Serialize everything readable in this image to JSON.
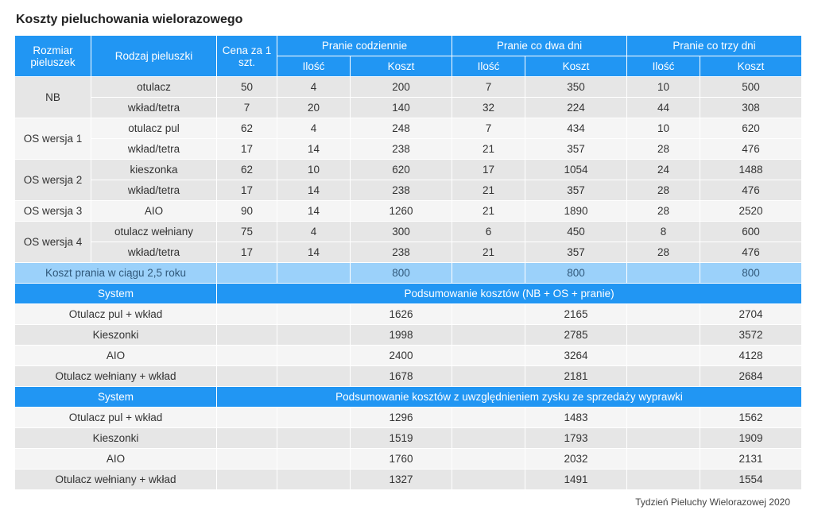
{
  "title": "Koszty pieluchowania wielorazowego",
  "footer": "Tydzień Pieluchy Wielorazowej 2020",
  "header": {
    "size": "Rozmiar pieluszek",
    "type": "Rodzaj pieluszki",
    "price": "Cena za 1 szt.",
    "daily": "Pranie codziennie",
    "two": "Pranie co dwa dni",
    "three": "Pranie co trzy dni",
    "qty": "Ilość",
    "cost": "Koszt"
  },
  "groups": [
    {
      "size": "NB",
      "rows": [
        {
          "type": "otulacz",
          "p": "50",
          "d": [
            "4",
            "200"
          ],
          "t": [
            "7",
            "350"
          ],
          "r": [
            "10",
            "500"
          ]
        },
        {
          "type": "wkład/tetra",
          "p": "7",
          "d": [
            "20",
            "140"
          ],
          "t": [
            "32",
            "224"
          ],
          "r": [
            "44",
            "308"
          ]
        }
      ]
    },
    {
      "size": "OS wersja 1",
      "rows": [
        {
          "type": "otulacz pul",
          "p": "62",
          "d": [
            "4",
            "248"
          ],
          "t": [
            "7",
            "434"
          ],
          "r": [
            "10",
            "620"
          ]
        },
        {
          "type": "wkład/tetra",
          "p": "17",
          "d": [
            "14",
            "238"
          ],
          "t": [
            "21",
            "357"
          ],
          "r": [
            "28",
            "476"
          ]
        }
      ]
    },
    {
      "size": "OS wersja 2",
      "rows": [
        {
          "type": "kieszonka",
          "p": "62",
          "d": [
            "10",
            "620"
          ],
          "t": [
            "17",
            "1054"
          ],
          "r": [
            "24",
            "1488"
          ]
        },
        {
          "type": "wkład/tetra",
          "p": "17",
          "d": [
            "14",
            "238"
          ],
          "t": [
            "21",
            "357"
          ],
          "r": [
            "28",
            "476"
          ]
        }
      ]
    },
    {
      "size": "OS wersja 3",
      "rows": [
        {
          "type": "AIO",
          "p": "90",
          "d": [
            "14",
            "1260"
          ],
          "t": [
            "21",
            "1890"
          ],
          "r": [
            "28",
            "2520"
          ]
        }
      ]
    },
    {
      "size": "OS wersja 4",
      "rows": [
        {
          "type": "otulacz wełniany",
          "p": "75",
          "d": [
            "4",
            "300"
          ],
          "t": [
            "6",
            "450"
          ],
          "r": [
            "8",
            "600"
          ]
        },
        {
          "type": "wkład/tetra",
          "p": "17",
          "d": [
            "14",
            "238"
          ],
          "t": [
            "21",
            "357"
          ],
          "r": [
            "28",
            "476"
          ]
        }
      ]
    }
  ],
  "washing": {
    "label": "Koszt prania w ciągu 2,5 roku",
    "values": [
      "800",
      "800",
      "800"
    ]
  },
  "summary1": {
    "system": "System",
    "title": "Podsumowanie kosztów (NB + OS + pranie)",
    "rows": [
      {
        "name": "Otulacz pul + wkład",
        "v": [
          "1626",
          "2165",
          "2704"
        ]
      },
      {
        "name": "Kieszonki",
        "v": [
          "1998",
          "2785",
          "3572"
        ]
      },
      {
        "name": "AIO",
        "v": [
          "2400",
          "3264",
          "4128"
        ]
      },
      {
        "name": "Otulacz wełniany + wkład",
        "v": [
          "1678",
          "2181",
          "2684"
        ]
      }
    ]
  },
  "summary2": {
    "system": "System",
    "title": "Podsumowanie kosztów z uwzględnieniem zysku ze sprzedaży wyprawki",
    "rows": [
      {
        "name": "Otulacz pul + wkład",
        "v": [
          "1296",
          "1483",
          "1562"
        ]
      },
      {
        "name": "Kieszonki",
        "v": [
          "1519",
          "1793",
          "1909"
        ]
      },
      {
        "name": "AIO",
        "v": [
          "1760",
          "2032",
          "2131"
        ]
      },
      {
        "name": "Otulacz wełniany + wkład",
        "v": [
          "1327",
          "1491",
          "1554"
        ]
      }
    ]
  }
}
